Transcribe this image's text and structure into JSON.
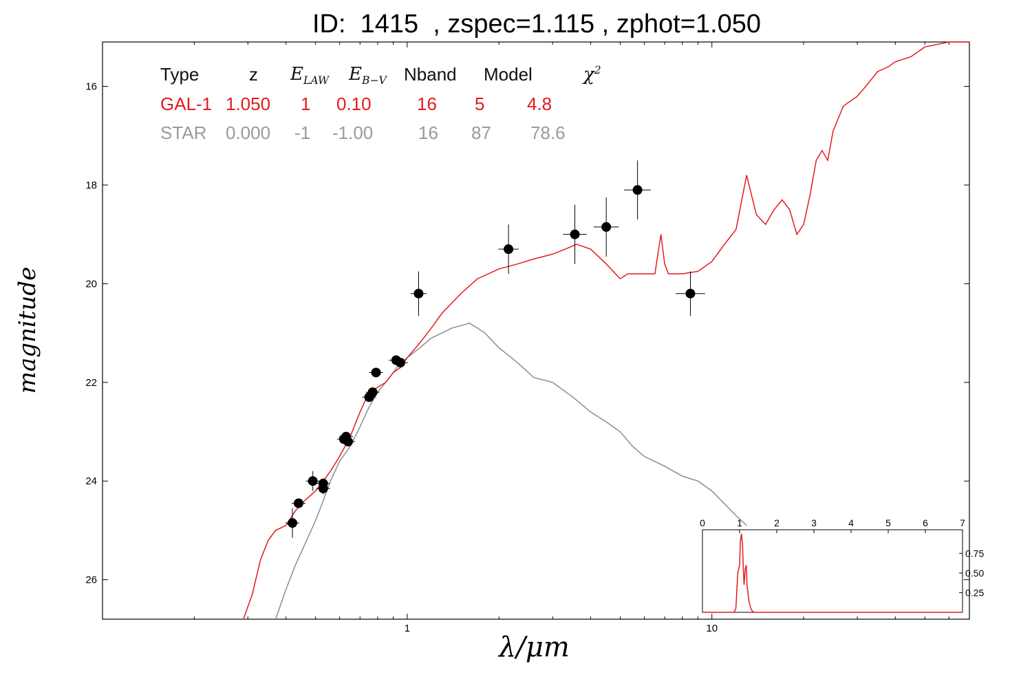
{
  "title": "ID:  1415  , zspec=1.115 , zphot=1.050",
  "chart_data": [
    {
      "type": "line",
      "title": "ID:  1415  , zspec=1.115 , zphot=1.050",
      "xlabel": "λ/μm",
      "ylabel": "magnitude",
      "xscale": "log",
      "xlim": [
        0.1,
        70
      ],
      "ylim": [
        26.8,
        15.1
      ],
      "x_ticks": [
        1,
        10
      ],
      "y_ticks": [
        16,
        18,
        20,
        22,
        24,
        26
      ],
      "grid": false,
      "series": [
        {
          "name": "GAL-1",
          "color": "#e41a1c",
          "x": [
            0.29,
            0.31,
            0.33,
            0.35,
            0.37,
            0.4,
            0.43,
            0.46,
            0.5,
            0.53,
            0.56,
            0.6,
            0.65,
            0.7,
            0.75,
            0.8,
            0.85,
            0.9,
            0.95,
            1.0,
            1.1,
            1.2,
            1.3,
            1.5,
            1.7,
            2.0,
            2.3,
            2.6,
            3.0,
            3.3,
            3.6,
            4.0,
            4.5,
            5.0,
            5.3,
            5.6,
            6.0,
            6.5,
            6.8,
            7.0,
            7.2,
            7.5,
            8.0,
            9.0,
            10.0,
            11.0,
            12.0,
            13.0,
            14.0,
            15.0,
            16.0,
            17.0,
            18.0,
            19.0,
            20.0,
            21.0,
            22.0,
            23.0,
            24.0,
            25.0,
            27.0,
            30.0,
            32.0,
            35.0,
            38.0,
            40.0,
            45.0,
            50.0,
            60.0,
            70.0
          ],
          "values": [
            26.8,
            26.3,
            25.6,
            25.2,
            25.0,
            24.9,
            24.6,
            24.4,
            24.2,
            24.0,
            23.8,
            23.5,
            23.1,
            22.6,
            22.2,
            22.1,
            22.0,
            21.8,
            21.7,
            21.5,
            21.2,
            20.9,
            20.6,
            20.2,
            19.9,
            19.7,
            19.6,
            19.5,
            19.4,
            19.3,
            19.2,
            19.3,
            19.6,
            19.9,
            19.8,
            19.8,
            19.8,
            19.8,
            19.0,
            19.6,
            19.8,
            19.8,
            19.8,
            19.75,
            19.55,
            19.2,
            18.9,
            17.8,
            18.6,
            18.8,
            18.5,
            18.3,
            18.5,
            19.0,
            18.8,
            18.2,
            17.5,
            17.3,
            17.5,
            16.9,
            16.4,
            16.2,
            16.0,
            15.7,
            15.6,
            15.5,
            15.4,
            15.2,
            15.0,
            14.8
          ]
        },
        {
          "name": "STAR",
          "color": "#8c8c8c",
          "x": [
            0.37,
            0.4,
            0.43,
            0.46,
            0.5,
            0.53,
            0.56,
            0.6,
            0.65,
            0.7,
            0.75,
            0.8,
            0.85,
            0.9,
            0.95,
            1.0,
            1.1,
            1.2,
            1.3,
            1.4,
            1.5,
            1.6,
            1.7,
            1.8,
            2.0,
            2.2,
            2.4,
            2.6,
            3.0,
            3.5,
            4.0,
            4.5,
            5.0,
            5.5,
            6.0,
            7.0,
            8.0,
            9.0,
            10.0,
            12.0,
            13.0
          ],
          "values": [
            26.8,
            26.2,
            25.7,
            25.3,
            24.8,
            24.4,
            24.0,
            23.6,
            23.3,
            22.9,
            22.5,
            22.2,
            22.0,
            21.8,
            21.6,
            21.5,
            21.3,
            21.1,
            21.0,
            20.9,
            20.85,
            20.8,
            20.9,
            21.0,
            21.3,
            21.5,
            21.7,
            21.9,
            22.0,
            22.3,
            22.6,
            22.8,
            23.0,
            23.3,
            23.5,
            23.7,
            23.9,
            24.0,
            24.2,
            24.7,
            24.9
          ]
        }
      ],
      "observations": {
        "x": [
          0.42,
          0.44,
          0.49,
          0.53,
          0.53,
          0.62,
          0.63,
          0.64,
          0.75,
          0.77,
          0.79,
          0.92,
          0.95,
          1.09,
          2.15,
          3.55,
          4.5,
          5.7,
          8.5
        ],
        "values": [
          24.85,
          24.45,
          24.0,
          24.15,
          24.05,
          23.15,
          23.1,
          23.2,
          22.3,
          22.2,
          21.8,
          21.55,
          21.6,
          20.2,
          19.3,
          19.0,
          18.85,
          18.1,
          20.2
        ],
        "y_err": [
          0.3,
          0.05,
          0.2,
          0.12,
          0.1,
          0.05,
          0.05,
          0.05,
          0.05,
          0.05,
          0.05,
          0.05,
          0.05,
          0.45,
          0.5,
          0.6,
          0.6,
          0.6,
          0.45
        ],
        "color": "#000000"
      },
      "table": {
        "headers": [
          "Type",
          "z",
          "E_LAW",
          "E_B-V",
          "Nband",
          "Model",
          "χ²"
        ],
        "rows": [
          {
            "type": "GAL-1",
            "z": "1.050",
            "elaw": "1",
            "ebv": "0.10",
            "nband": "16",
            "model": "5",
            "chi2": "4.8",
            "color": "#e41a1c"
          },
          {
            "type": "STAR",
            "z": "0.000",
            "elaw": "-1",
            "ebv": "-1.00",
            "nband": "16",
            "model": "87",
            "chi2": "78.6",
            "color": "#9a9a9a"
          }
        ]
      }
    },
    {
      "type": "line",
      "title": "",
      "xlim": [
        0,
        7
      ],
      "ylim": [
        0,
        1.05
      ],
      "x_ticks": [
        0,
        1,
        2,
        3,
        4,
        5,
        6,
        7
      ],
      "y_ticks": [
        0.25,
        0.5,
        0.75
      ],
      "y_tick_labels": [
        "0.25",
        "0.50",
        "0.75"
      ],
      "series": [
        {
          "color": "#e41a1c",
          "x": [
            0,
            0.85,
            0.9,
            0.95,
            1.0,
            1.02,
            1.05,
            1.08,
            1.1,
            1.12,
            1.15,
            1.18,
            1.2,
            1.25,
            1.3,
            1.35,
            1.4,
            7.0
          ],
          "values": [
            0,
            0,
            0.05,
            0.5,
            0.6,
            0.9,
            1.0,
            0.85,
            0.55,
            0.35,
            0.55,
            0.6,
            0.35,
            0.15,
            0.05,
            0.01,
            0,
            0
          ]
        }
      ]
    }
  ]
}
